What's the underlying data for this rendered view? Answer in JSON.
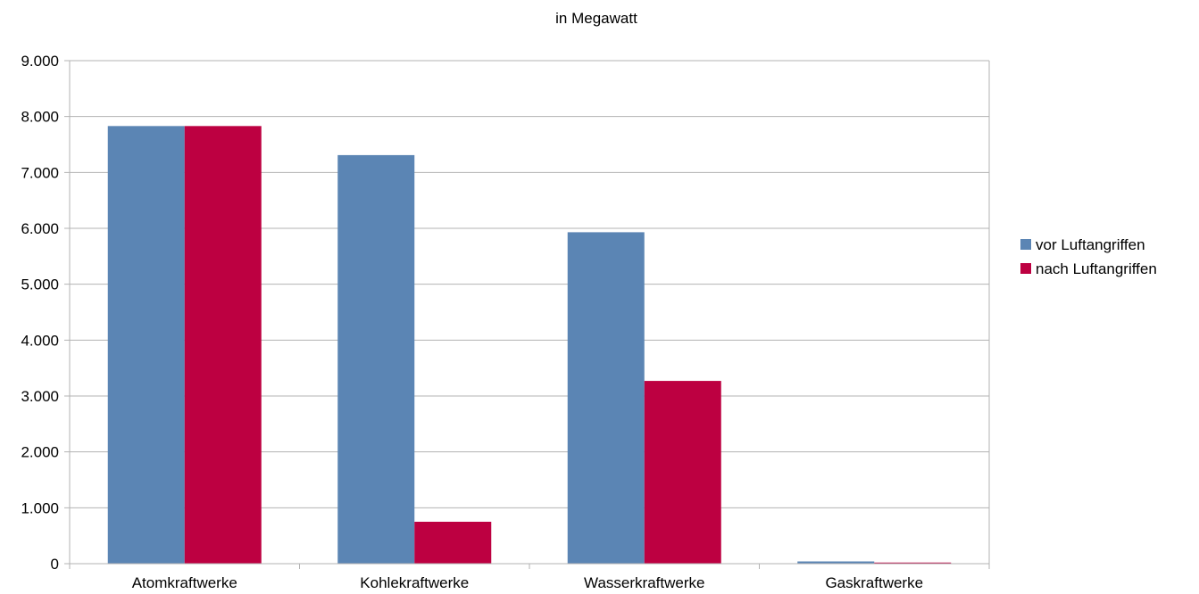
{
  "chart_data": {
    "type": "bar",
    "title": "in Megawatt",
    "xlabel": "",
    "ylabel": "",
    "categories": [
      "Atomkraftwerke",
      "Kohlekraftwerke",
      "Wasserkraftwerke",
      "Gaskraftwerke"
    ],
    "series": [
      {
        "name": "vor Luftangriffen",
        "color": "#5b85b4",
        "values": [
          7830,
          7310,
          5930,
          40
        ]
      },
      {
        "name": "nach Luftangriffen",
        "color": "#bd0041",
        "values": [
          7830,
          750,
          3270,
          20
        ]
      }
    ],
    "ylim": [
      0,
      9000
    ],
    "yticks": [
      0,
      1000,
      2000,
      3000,
      4000,
      5000,
      6000,
      7000,
      8000,
      9000
    ],
    "ytick_labels": [
      "0",
      "1.000",
      "2.000",
      "3.000",
      "4.000",
      "5.000",
      "6.000",
      "7.000",
      "8.000",
      "9.000"
    ],
    "grid": true,
    "legend_position": "right"
  }
}
